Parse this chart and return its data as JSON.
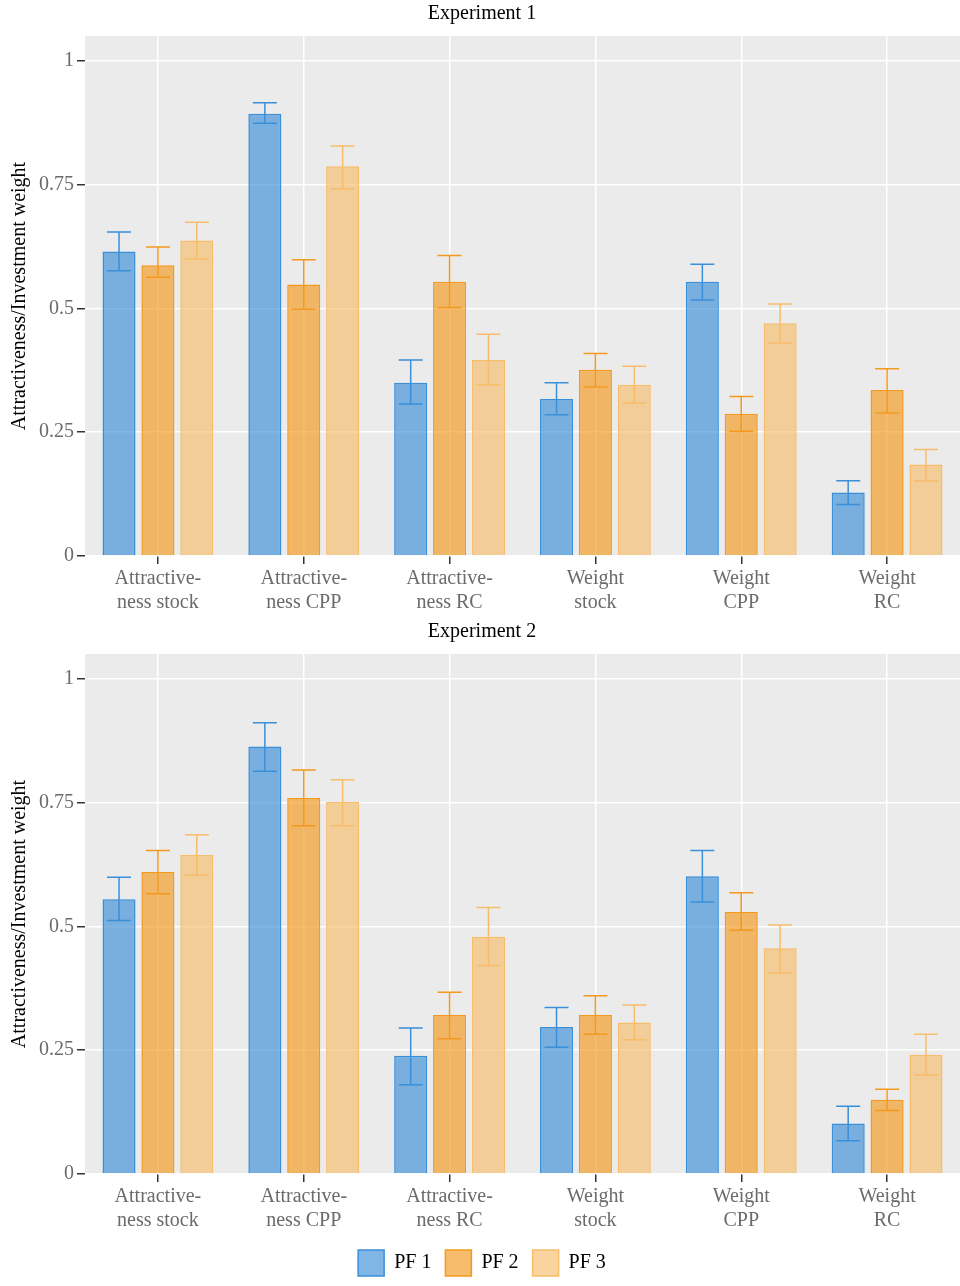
{
  "chart_data": [
    {
      "type": "bar",
      "title": "Experiment 1",
      "ylabel": "Attractiveness/Investment weight",
      "categories": [
        "Attractive-ness stock",
        "Attractive-ness CPP",
        "Attractive-ness RC",
        "Weight stock",
        "Weight CPP",
        "Weight RC"
      ],
      "ylim": [
        0,
        1.05
      ],
      "yticks": [
        0,
        0.25,
        0.5,
        0.75,
        1
      ],
      "grid": true,
      "legend": false,
      "series": [
        {
          "color": "#3a8fd9",
          "values": [
            0.615,
            0.893,
            0.35,
            0.317,
            0.554,
            0.128
          ],
          "errors": [
            [
              0.576,
              0.654
            ],
            [
              0.874,
              0.915
            ],
            [
              0.307,
              0.396
            ],
            [
              0.285,
              0.35
            ],
            [
              0.517,
              0.589
            ],
            [
              0.104,
              0.152
            ]
          ]
        },
        {
          "color": "#f39a1e",
          "values": [
            0.587,
            0.548,
            0.554,
            0.376,
            0.287,
            0.335
          ],
          "errors": [
            [
              0.563,
              0.624
            ],
            [
              0.498,
              0.598
            ],
            [
              0.502,
              0.607
            ],
            [
              0.341,
              0.409
            ],
            [
              0.252,
              0.322
            ],
            [
              0.289,
              0.378
            ]
          ]
        },
        {
          "color": "#f7bd6a",
          "values": [
            0.637,
            0.787,
            0.396,
            0.346,
            0.47,
            0.185
          ],
          "errors": [
            [
              0.6,
              0.674
            ],
            [
              0.741,
              0.828
            ],
            [
              0.346,
              0.448
            ],
            [
              0.309,
              0.383
            ],
            [
              0.43,
              0.509
            ],
            [
              0.152,
              0.215
            ]
          ]
        }
      ]
    },
    {
      "type": "bar",
      "title": "Experiment 2",
      "ylabel": "Attractiveness/Investment weight",
      "categories": [
        "Attractive-ness stock",
        "Attractive-ness CPP",
        "Attractive-ness RC",
        "Weight stock",
        "Weight CPP",
        "Weight RC"
      ],
      "ylim": [
        0,
        1.05
      ],
      "yticks": [
        0,
        0.25,
        0.5,
        0.75,
        1
      ],
      "grid": true,
      "legend": "bottom",
      "series": [
        {
          "name": "PF 1",
          "color": "#3a8fd9",
          "values": [
            0.555,
            0.863,
            0.239,
            0.297,
            0.601,
            0.102
          ],
          "errors": [
            [
              0.512,
              0.599
            ],
            [
              0.813,
              0.911
            ],
            [
              0.18,
              0.295
            ],
            [
              0.256,
              0.336
            ],
            [
              0.549,
              0.653
            ],
            [
              0.067,
              0.137
            ]
          ]
        },
        {
          "name": "PF 2",
          "color": "#f39a1e",
          "values": [
            0.61,
            0.759,
            0.321,
            0.321,
            0.529,
            0.15
          ],
          "errors": [
            [
              0.566,
              0.653
            ],
            [
              0.703,
              0.816
            ],
            [
              0.273,
              0.367
            ],
            [
              0.282,
              0.36
            ],
            [
              0.492,
              0.568
            ],
            [
              0.128,
              0.171
            ]
          ]
        },
        {
          "name": "PF 3",
          "color": "#f7bd6a",
          "values": [
            0.644,
            0.751,
            0.479,
            0.306,
            0.456,
            0.241
          ],
          "errors": [
            [
              0.603,
              0.685
            ],
            [
              0.703,
              0.796
            ],
            [
              0.421,
              0.538
            ],
            [
              0.271,
              0.341
            ],
            [
              0.406,
              0.503
            ],
            [
              0.2,
              0.282
            ]
          ]
        }
      ]
    }
  ]
}
